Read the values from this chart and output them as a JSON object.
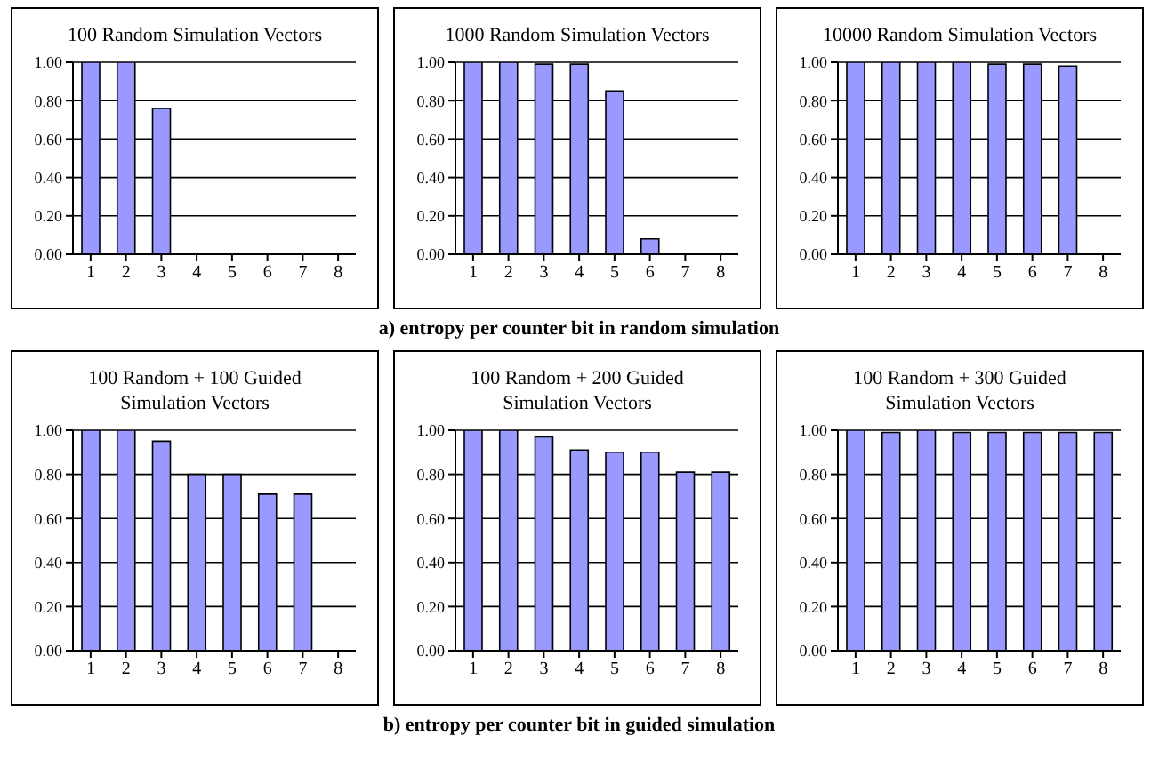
{
  "chart_data": [
    {
      "type": "bar",
      "title": "100 Random Simulation Vectors",
      "categories": [
        "1",
        "2",
        "3",
        "4",
        "5",
        "6",
        "7",
        "8"
      ],
      "values": [
        1.0,
        1.0,
        0.76,
        0,
        0,
        0,
        0,
        0
      ],
      "color": "#9999ff",
      "ylim": [
        0,
        1
      ],
      "yticks": [
        {
          "value": 0,
          "label": "0.00"
        },
        {
          "value": 0.2,
          "label": "0.20"
        },
        {
          "value": 0.4,
          "label": "0.40"
        },
        {
          "value": 0.6,
          "label": "0.60"
        },
        {
          "value": 0.8,
          "label": "0.80"
        },
        {
          "value": 1,
          "label": "1.00"
        }
      ],
      "grid": "y"
    },
    {
      "type": "bar",
      "title": "1000 Random Simulation Vectors",
      "categories": [
        "1",
        "2",
        "3",
        "4",
        "5",
        "6",
        "7",
        "8"
      ],
      "values": [
        1.0,
        1.0,
        0.99,
        0.99,
        0.85,
        0.08,
        0,
        0
      ],
      "color": "#9999ff",
      "ylim": [
        0,
        1
      ],
      "yticks": [
        {
          "value": 0,
          "label": "0.00"
        },
        {
          "value": 0.2,
          "label": "0.20"
        },
        {
          "value": 0.4,
          "label": "0.40"
        },
        {
          "value": 0.6,
          "label": "0.60"
        },
        {
          "value": 0.8,
          "label": "0.80"
        },
        {
          "value": 1,
          "label": "1.00"
        }
      ],
      "grid": "y",
      "annotations": [
        "a) entropy per counter bit in random simulation"
      ]
    },
    {
      "type": "bar",
      "title": "10000 Random Simulation Vectors",
      "categories": [
        "1",
        "2",
        "3",
        "4",
        "5",
        "6",
        "7",
        "8"
      ],
      "values": [
        1.0,
        1.0,
        1.0,
        1.0,
        0.99,
        0.99,
        0.98,
        0
      ],
      "color": "#9999ff",
      "ylim": [
        0,
        1
      ],
      "yticks": [
        {
          "value": 0,
          "label": "0.00"
        },
        {
          "value": 0.2,
          "label": "0.20"
        },
        {
          "value": 0.4,
          "label": "0.40"
        },
        {
          "value": 0.6,
          "label": "0.60"
        },
        {
          "value": 0.8,
          "label": "0.80"
        },
        {
          "value": 1,
          "label": "1.00"
        }
      ],
      "grid": "y"
    },
    {
      "type": "bar",
      "title": "100 Random + 100 Guided Simulation Vectors",
      "categories": [
        "1",
        "2",
        "3",
        "4",
        "5",
        "6",
        "7",
        "8"
      ],
      "values": [
        1.0,
        1.0,
        0.95,
        0.8,
        0.8,
        0.71,
        0.71,
        0
      ],
      "color": "#9999ff",
      "ylim": [
        0,
        1
      ],
      "yticks": [
        {
          "value": 0,
          "label": "0.00"
        },
        {
          "value": 0.2,
          "label": "0.20"
        },
        {
          "value": 0.4,
          "label": "0.40"
        },
        {
          "value": 0.6,
          "label": "0.60"
        },
        {
          "value": 0.8,
          "label": "0.80"
        },
        {
          "value": 1,
          "label": "1.00"
        }
      ],
      "grid": "y"
    },
    {
      "type": "bar",
      "title": "100 Random + 200 Guided Simulation Vectors",
      "categories": [
        "1",
        "2",
        "3",
        "4",
        "5",
        "6",
        "7",
        "8"
      ],
      "values": [
        1.0,
        1.0,
        0.97,
        0.91,
        0.9,
        0.9,
        0.81,
        0.81
      ],
      "color": "#9999ff",
      "ylim": [
        0,
        1
      ],
      "yticks": [
        {
          "value": 0,
          "label": "0.00"
        },
        {
          "value": 0.2,
          "label": "0.20"
        },
        {
          "value": 0.4,
          "label": "0.40"
        },
        {
          "value": 0.6,
          "label": "0.60"
        },
        {
          "value": 0.8,
          "label": "0.80"
        },
        {
          "value": 1,
          "label": "1.00"
        }
      ],
      "grid": "y",
      "annotations": [
        "b) entropy per counter bit in guided simulation"
      ]
    },
    {
      "type": "bar",
      "title": "100 Random + 300 Guided Simulation Vectors",
      "categories": [
        "1",
        "2",
        "3",
        "4",
        "5",
        "6",
        "7",
        "8"
      ],
      "values": [
        1.0,
        0.99,
        1.0,
        0.99,
        0.99,
        0.99,
        0.99,
        0.99
      ],
      "color": "#9999ff",
      "ylim": [
        0,
        1
      ],
      "yticks": [
        {
          "value": 0,
          "label": "0.00"
        },
        {
          "value": 0.2,
          "label": "0.20"
        },
        {
          "value": 0.4,
          "label": "0.40"
        },
        {
          "value": 0.6,
          "label": "0.60"
        },
        {
          "value": 0.8,
          "label": "0.80"
        },
        {
          "value": 1,
          "label": "1.00"
        }
      ],
      "grid": "y"
    }
  ]
}
